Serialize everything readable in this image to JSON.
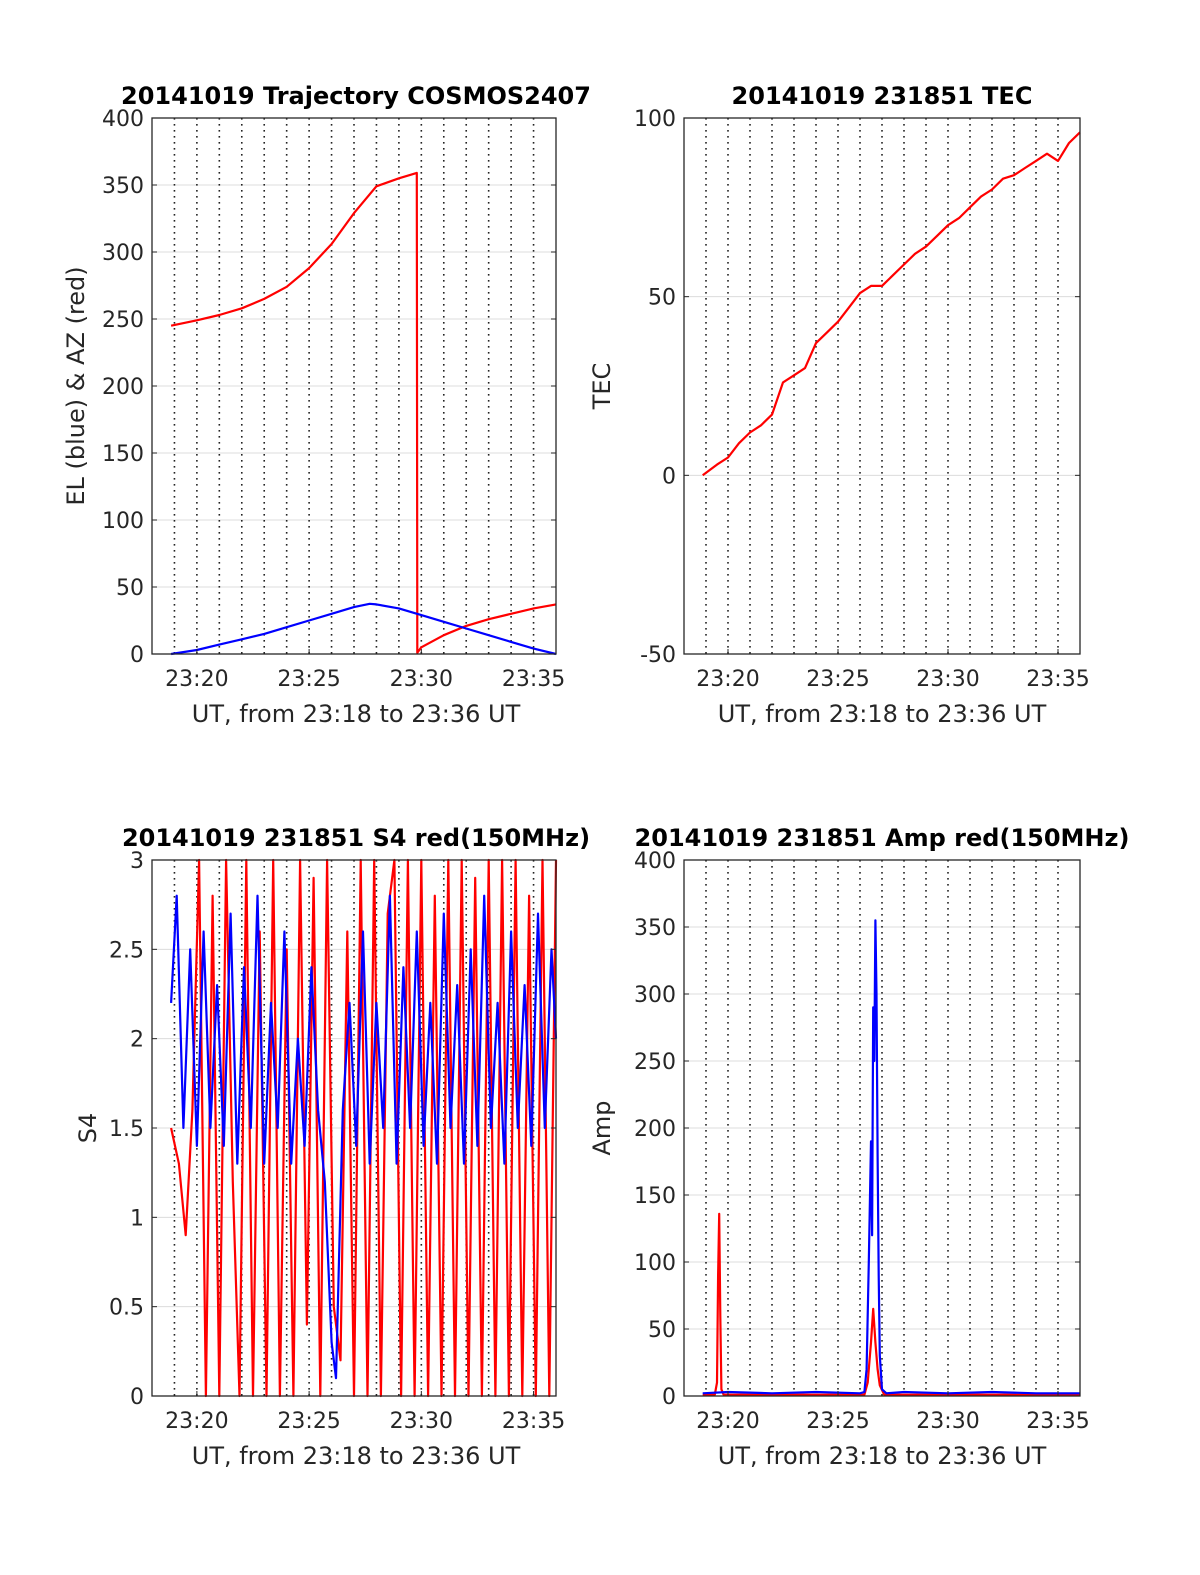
{
  "chart_data": [
    {
      "type": "line",
      "title": "20141019 Trajectory COSMOS2407",
      "xlabel": "UT, from 23:18 to 23:36 UT",
      "ylabel": "EL (blue) & AZ (red)",
      "xlim": [
        0,
        18
      ],
      "ylim": [
        0,
        400
      ],
      "xticks": [
        2,
        7,
        12,
        17
      ],
      "xtick_labels": [
        "23:20",
        "23:25",
        "23:30",
        "23:35"
      ],
      "yticks": [
        0,
        50,
        100,
        150,
        200,
        250,
        300,
        350,
        400
      ],
      "ytick_labels": [
        "0",
        "50",
        "100",
        "150",
        "200",
        "250",
        "300",
        "350",
        "400"
      ],
      "grid": "vertical dotted every 1 min; horizontal solid at y ticks",
      "series": [
        {
          "color": "#ff0000",
          "x": [
            0.85,
            2,
            3,
            4,
            5,
            6,
            7,
            8,
            9,
            10,
            11,
            11.8,
            11.82,
            12,
            13,
            14,
            15,
            16,
            17,
            18
          ],
          "values": [
            245,
            249,
            253,
            258,
            265,
            274,
            288,
            306,
            329,
            349,
            355,
            359,
            1,
            5,
            14,
            21,
            26,
            30,
            34,
            37
          ]
        },
        {
          "color": "#0000ff",
          "x": [
            0.85,
            2,
            3,
            4,
            5,
            6,
            7,
            8,
            9,
            9.7,
            10,
            11,
            12,
            13,
            14,
            15,
            16,
            17,
            18
          ],
          "values": [
            0,
            3,
            7,
            11,
            15,
            20,
            25,
            30,
            35,
            37.5,
            37,
            34,
            29,
            24,
            19,
            14,
            9,
            4,
            0
          ]
        }
      ]
    },
    {
      "type": "line",
      "title": "20141019 231851 TEC",
      "xlabel": "UT, from 23:18 to 23:36 UT",
      "ylabel": "TEC",
      "xlim": [
        0,
        18
      ],
      "ylim": [
        -50,
        100
      ],
      "xticks": [
        2,
        7,
        12,
        17
      ],
      "xtick_labels": [
        "23:20",
        "23:25",
        "23:30",
        "23:35"
      ],
      "yticks": [
        -50,
        0,
        50,
        100
      ],
      "ytick_labels": [
        "-50",
        "0",
        "50",
        "100"
      ],
      "series": [
        {
          "color": "#ff0000",
          "x": [
            0.85,
            1.5,
            2,
            2.5,
            3,
            3.5,
            4,
            4.5,
            5,
            5.5,
            6,
            6.5,
            7,
            7.5,
            8,
            8.5,
            9,
            9.5,
            10,
            10.5,
            11,
            11.5,
            12,
            12.5,
            13,
            13.5,
            14,
            14.5,
            15,
            15.5,
            16,
            16.5,
            17,
            17.5,
            18
          ],
          "values": [
            0,
            3,
            5,
            9,
            12,
            14,
            17,
            26,
            28,
            30,
            37,
            40,
            43,
            47,
            51,
            53,
            53,
            56,
            59,
            62,
            64,
            67,
            70,
            72,
            75,
            78,
            80,
            83,
            84,
            86,
            88,
            90,
            88,
            93,
            96
          ]
        }
      ]
    },
    {
      "type": "line",
      "title": "20141019 231851 S4 red(150MHz)",
      "xlabel": "UT, from 23:18 to 23:36 UT",
      "ylabel": "S4",
      "xlim": [
        0,
        18
      ],
      "ylim": [
        0,
        3
      ],
      "xticks": [
        2,
        7,
        12,
        17
      ],
      "xtick_labels": [
        "23:20",
        "23:25",
        "23:30",
        "23:35"
      ],
      "yticks": [
        0,
        0.5,
        1,
        1.5,
        2,
        2.5,
        3
      ],
      "ytick_labels": [
        "0",
        "0.5",
        "1",
        "1.5",
        "2",
        "2.5",
        "3"
      ],
      "series": [
        {
          "color": "#ff0000",
          "x": [
            0.85,
            1.2,
            1.5,
            1.8,
            2.1,
            2.4,
            2.7,
            3.0,
            3.3,
            3.6,
            3.9,
            4.2,
            4.5,
            4.8,
            5.1,
            5.4,
            5.7,
            6.0,
            6.3,
            6.6,
            6.9,
            7.2,
            7.5,
            7.8,
            8.1,
            8.4,
            8.7,
            9.0,
            9.3,
            9.6,
            9.9,
            10.2,
            10.5,
            10.8,
            11.1,
            11.4,
            11.7,
            12.0,
            12.3,
            12.6,
            12.9,
            13.2,
            13.5,
            13.8,
            14.1,
            14.4,
            14.7,
            15.0,
            15.3,
            15.6,
            15.9,
            16.2,
            16.5,
            16.8,
            17.1,
            17.4,
            17.7,
            18.0
          ],
          "values": [
            1.5,
            1.3,
            0.9,
            1.6,
            3.0,
            0,
            2.8,
            0,
            3.0,
            1.2,
            0,
            3.0,
            0,
            2.6,
            0,
            3.0,
            0,
            2.5,
            0,
            3.0,
            0.4,
            2.9,
            0,
            3.0,
            0.5,
            0.2,
            2.6,
            0,
            3.0,
            0,
            3.0,
            0,
            2.7,
            3.0,
            0,
            3.0,
            0,
            3.0,
            0,
            2.8,
            0,
            3.0,
            0,
            3.0,
            0,
            2.9,
            0,
            3.0,
            0,
            3.0,
            0,
            3.0,
            0,
            2.8,
            0,
            3.0,
            0,
            3.0
          ]
        },
        {
          "color": "#0000ff",
          "x": [
            0.85,
            1.1,
            1.4,
            1.7,
            2.0,
            2.3,
            2.6,
            2.9,
            3.2,
            3.5,
            3.8,
            4.1,
            4.4,
            4.7,
            5.0,
            5.3,
            5.6,
            5.9,
            6.2,
            6.5,
            6.8,
            7.1,
            7.4,
            7.7,
            8.0,
            8.2,
            8.5,
            8.8,
            9.1,
            9.4,
            9.7,
            10.0,
            10.3,
            10.6,
            10.9,
            11.2,
            11.5,
            11.8,
            12.1,
            12.4,
            12.7,
            13.0,
            13.3,
            13.6,
            13.9,
            14.2,
            14.5,
            14.8,
            15.1,
            15.4,
            15.7,
            16.0,
            16.3,
            16.6,
            16.9,
            17.2,
            17.5,
            17.8,
            18.0
          ],
          "values": [
            2.2,
            2.8,
            1.5,
            2.5,
            1.4,
            2.6,
            1.5,
            2.3,
            1.4,
            2.7,
            1.3,
            2.4,
            1.5,
            2.8,
            1.3,
            2.2,
            1.5,
            2.6,
            1.3,
            2.0,
            1.4,
            2.4,
            1.6,
            1.2,
            0.3,
            0.1,
            1.6,
            2.2,
            1.4,
            2.6,
            1.3,
            2.2,
            1.5,
            2.8,
            1.3,
            2.4,
            1.5,
            2.6,
            1.4,
            2.2,
            1.3,
            2.7,
            1.5,
            2.3,
            1.3,
            2.5,
            1.4,
            2.8,
            1.5,
            2.2,
            1.3,
            2.6,
            1.5,
            2.3,
            1.4,
            2.7,
            1.5,
            2.5,
            2.0
          ]
        }
      ]
    },
    {
      "type": "line",
      "title": "20141019 231851 Amp red(150MHz)",
      "xlabel": "UT, from 23:18 to 23:36 UT",
      "ylabel": "Amp",
      "xlim": [
        0,
        18
      ],
      "ylim": [
        0,
        400
      ],
      "xticks": [
        2,
        7,
        12,
        17
      ],
      "xtick_labels": [
        "23:20",
        "23:25",
        "23:30",
        "23:35"
      ],
      "yticks": [
        0,
        50,
        100,
        150,
        200,
        250,
        300,
        350,
        400
      ],
      "ytick_labels": [
        "0",
        "50",
        "100",
        "150",
        "200",
        "250",
        "300",
        "350",
        "400"
      ],
      "series": [
        {
          "color": "#ff0000",
          "x": [
            0.85,
            1.4,
            1.5,
            1.55,
            1.6,
            1.65,
            1.7,
            1.8,
            8.2,
            8.35,
            8.5,
            8.6,
            8.7,
            8.8,
            8.9,
            9.1,
            18.0
          ],
          "values": [
            1,
            1,
            10,
            90,
            136,
            60,
            5,
            1,
            1,
            10,
            40,
            65,
            40,
            20,
            8,
            1,
            1
          ]
        },
        {
          "color": "#0000ff",
          "x": [
            0.85,
            2,
            4,
            6,
            8,
            8.2,
            8.3,
            8.4,
            8.5,
            8.55,
            8.6,
            8.65,
            8.7,
            8.75,
            8.8,
            8.85,
            8.9,
            9.0,
            9.2,
            10,
            12,
            14,
            16,
            18.0
          ],
          "values": [
            2,
            3,
            2,
            3,
            2,
            3,
            20,
            100,
            190,
            120,
            290,
            250,
            355,
            300,
            180,
            90,
            30,
            5,
            2,
            3,
            2,
            3,
            2,
            2
          ]
        }
      ]
    }
  ]
}
